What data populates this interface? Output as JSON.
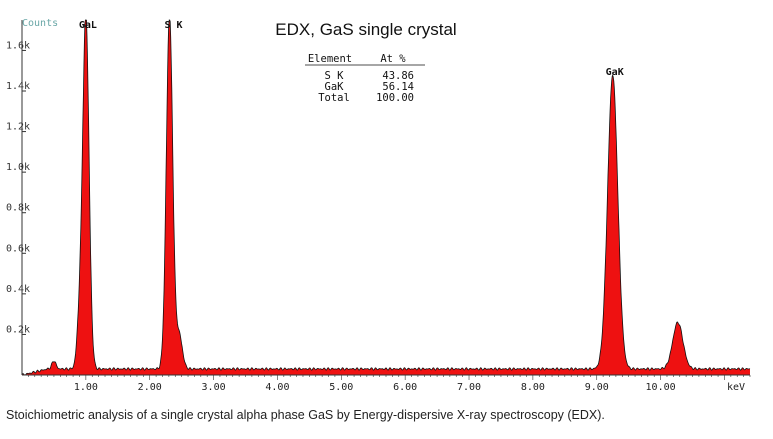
{
  "chart_data": {
    "type": "area",
    "title": "EDX, GaS single crystal",
    "ylabel": "Counts",
    "xunit": "keV",
    "xlim": [
      0,
      11.4
    ],
    "ylim": [
      0,
      1750
    ],
    "x_ticks": [
      "1.00",
      "2.00",
      "3.00",
      "4.00",
      "5.00",
      "6.00",
      "7.00",
      "8.00",
      "9.00",
      "10.00"
    ],
    "y_ticks": [
      "0.2k",
      "0.4k",
      "0.6k",
      "0.8k",
      "1.0k",
      "1.2k",
      "1.4k",
      "1.6k"
    ],
    "baseline_counts": 30,
    "peaks": [
      {
        "label": "GaL",
        "energy_kev": 1.0,
        "counts": 1750,
        "width_kev": 0.05
      },
      {
        "label": "",
        "energy_kev": 0.9,
        "counts": 220,
        "width_kev": 0.04
      },
      {
        "label": "S K",
        "energy_kev": 2.31,
        "counts": 1750,
        "width_kev": 0.05
      },
      {
        "label": "",
        "energy_kev": 2.46,
        "counts": 170,
        "width_kev": 0.05
      },
      {
        "label": "GaK",
        "energy_kev": 9.25,
        "counts": 1450,
        "width_kev": 0.08
      },
      {
        "label": "",
        "energy_kev": 10.27,
        "counts": 230,
        "width_kev": 0.08
      }
    ],
    "table": {
      "headers": [
        "Element",
        "At %"
      ],
      "rows": [
        [
          "S K",
          "43.86"
        ],
        [
          "GaK",
          "56.14"
        ],
        [
          "Total",
          "100.00"
        ]
      ]
    },
    "colors": {
      "fill": "#ee1111",
      "outline": "#111111",
      "axis": "#333333"
    }
  },
  "caption": "Stoichiometric analysis of a single crystal alpha phase GaS by Energy-dispersive X-ray spectroscopy (EDX)."
}
